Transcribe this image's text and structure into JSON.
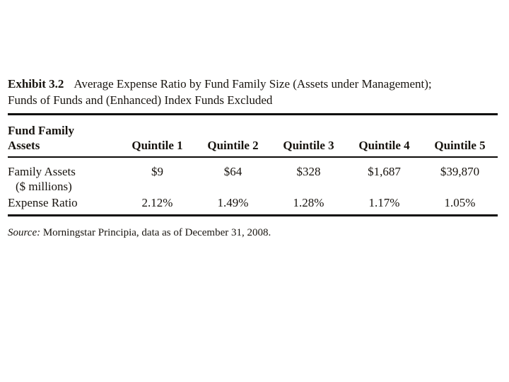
{
  "document": {
    "exhibit_label": "Exhibit 3.2",
    "title_line1": "Average Expense Ratio by Fund Family Size (Assets under Management);",
    "title_line2": "Funds of Funds and (Enhanced) Index Funds Excluded",
    "source": {
      "label": "Source:",
      "text": "Morningstar Principia, data as of December 31, 2008."
    }
  },
  "table": {
    "header": {
      "row_label_line1": "Fund Family",
      "row_label_line2": "Assets",
      "quintiles": [
        "Quintile 1",
        "Quintile 2",
        "Quintile 3",
        "Quintile 4",
        "Quintile 5"
      ]
    },
    "rows": [
      {
        "label": "Family Assets",
        "label_note": "($ millions)",
        "values": [
          "$9",
          "$64",
          "$328",
          "$1,687",
          "$39,870"
        ]
      },
      {
        "label": "Expense Ratio",
        "values": [
          "2.12%",
          "1.49%",
          "1.28%",
          "1.17%",
          "1.05%"
        ]
      }
    ]
  },
  "colors": {
    "background": "#ffffff",
    "text": "#17130e",
    "rule": "#0c0a08"
  }
}
